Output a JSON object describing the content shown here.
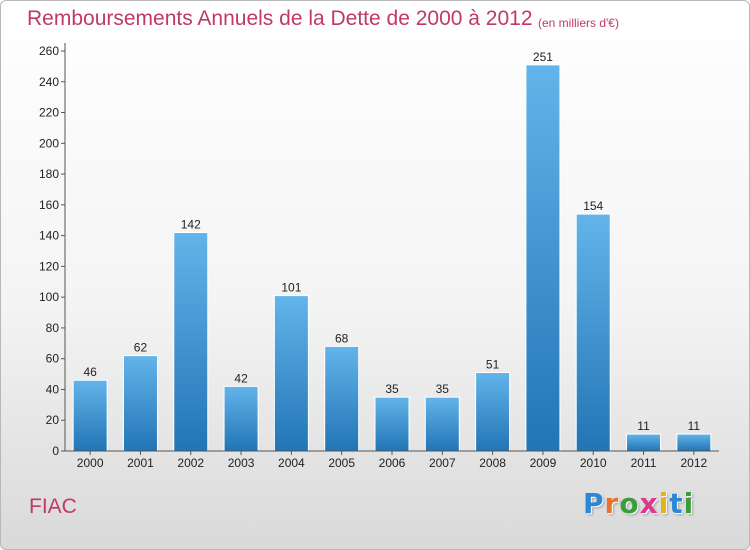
{
  "chart_data": {
    "type": "bar",
    "title": "Remboursements Annuels de la Dette de 2000 à 2012",
    "subtitle": "(en milliers d'€)",
    "categories": [
      "2000",
      "2001",
      "2002",
      "2003",
      "2004",
      "2005",
      "2006",
      "2007",
      "2008",
      "2009",
      "2010",
      "2011",
      "2012"
    ],
    "values": [
      46,
      62,
      142,
      42,
      101,
      68,
      35,
      35,
      51,
      251,
      154,
      11,
      11
    ],
    "ylim": [
      0,
      260
    ],
    "yticks": [
      0,
      20,
      40,
      60,
      80,
      100,
      120,
      140,
      160,
      180,
      200,
      220,
      240,
      260
    ],
    "grid": false,
    "legend": "none",
    "colors": {
      "bar_light": "#62b4ea",
      "bar_dark": "#2275b5",
      "title": "#c03a62",
      "axis": "#555555"
    }
  },
  "commune": "FIAC",
  "logo": {
    "letters": [
      "P",
      "r",
      "o",
      "x",
      "i",
      "t",
      "i"
    ],
    "colors": [
      "#2e86d6",
      "#e8732a",
      "#3b9c3b",
      "#d93a8e",
      "#e3b21a",
      "#2e86d6",
      "#3b9c3b"
    ]
  }
}
